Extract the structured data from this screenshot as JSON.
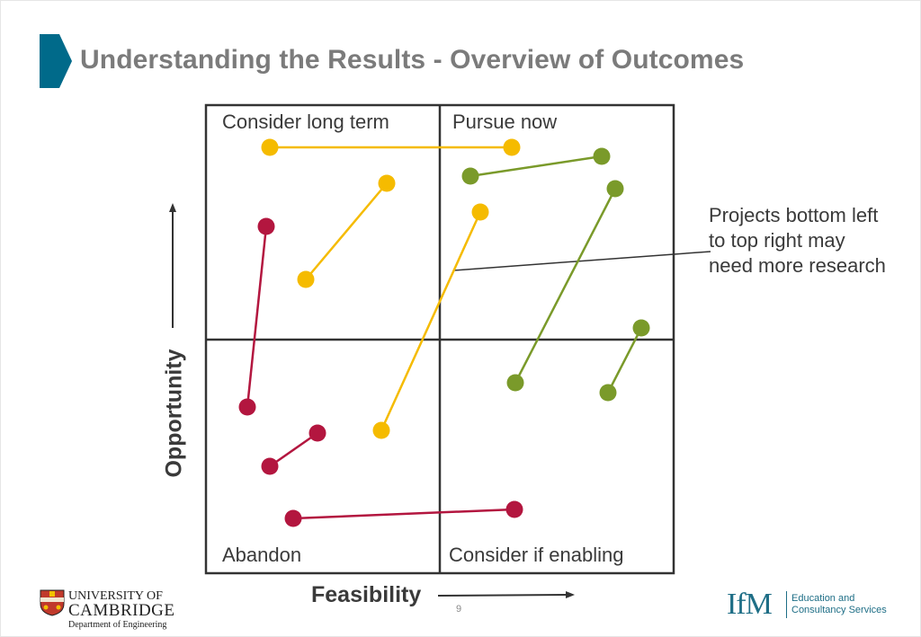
{
  "title": "Understanding the Results - Overview of Outcomes",
  "colors": {
    "title": "#7b7b7b",
    "accent": "#006a8a",
    "grid": "#333333",
    "red": "#b3163f",
    "yellow": "#f5bb00",
    "green": "#7a9a2a"
  },
  "quadrants": {
    "top_left": "Consider long term",
    "top_right": "Pursue now",
    "bottom_left": "Abandon",
    "bottom_right": "Consider if enabling"
  },
  "callout": "Projects bottom left to top right may need more research",
  "axes": {
    "y_label": "Opportunity",
    "x_label": "Feasibility"
  },
  "page_number": "9",
  "logos": {
    "cambridge_line1": "UNIVERSITY OF",
    "cambridge_line2": "CAMBRIDGE",
    "cambridge_line3": "Department of Engineering",
    "ifm_mark": "IfM",
    "ifm_line1": "Education and",
    "ifm_line2": "Consultancy Services"
  }
}
